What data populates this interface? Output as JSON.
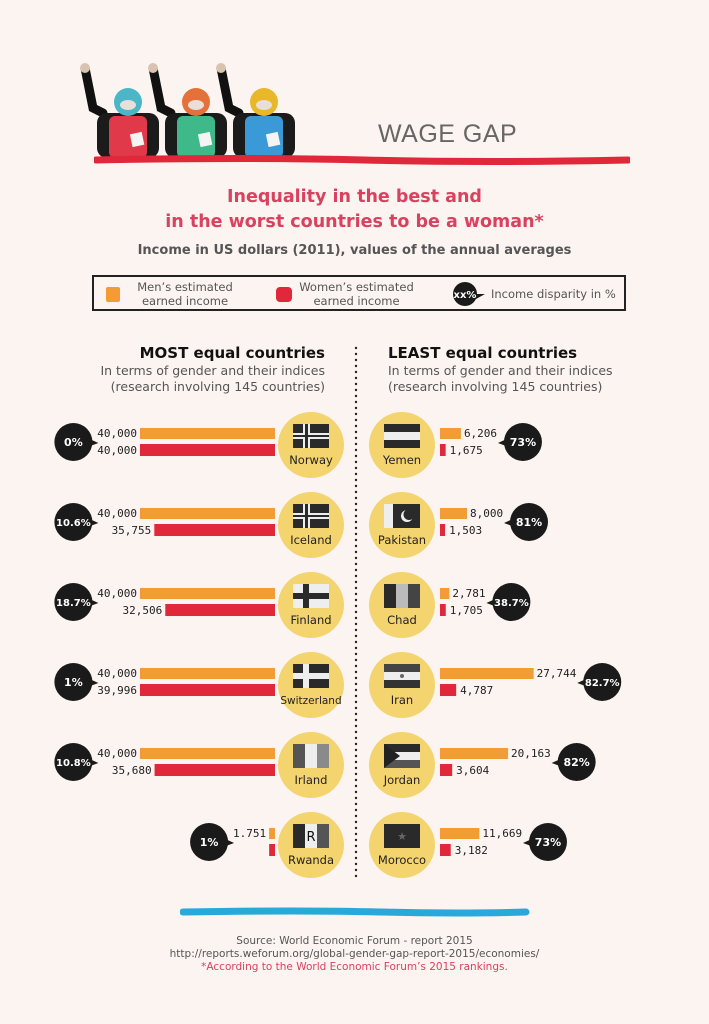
{
  "header": {
    "title": "WAGE GAP",
    "illustration": "three-protesters-raised-fists"
  },
  "headline": {
    "line1": "Inequality in the best and",
    "line2": "in the worst countries to be a woman*"
  },
  "subtitle": "Income in US dollars (2011),  values of the annual averages",
  "legend": {
    "men": "Men’s estimated earned income",
    "men_l1": "Men’s estimated",
    "men_l2": "earned income",
    "women_l1": "Women’s estimated",
    "women_l2": "earned income",
    "bubble_sample": "xx%",
    "disparity": "Income disparity in %"
  },
  "colors": {
    "men": "#f39b35",
    "women": "#e0283a",
    "circle": "#f3d46e",
    "bubble": "#1a1a1a",
    "headline": "#d9415f",
    "top_line": "#e0283a",
    "bottom_line": "#27a9d9",
    "background": "#fcf4f1"
  },
  "sections": {
    "most": {
      "title": "MOST equal countries",
      "l1": "In terms of gender and their indices",
      "l2": "(research involving 145 countries)"
    },
    "least": {
      "title": "LEAST equal countries",
      "l1": "In terms of gender and their indices",
      "l2": "(research involving 145 countries)"
    }
  },
  "chart_data": {
    "type": "bar",
    "units": "US dollars (2011)",
    "series_names": [
      "Men’s estimated earned income",
      "Women’s estimated earned income"
    ],
    "most_equal": [
      {
        "country": "Norway",
        "flag_icon": "norway-flag-icon",
        "men": 40000,
        "women": 40000,
        "men_label": "40,000",
        "women_label": "40,000",
        "disparity": "0%"
      },
      {
        "country": "Iceland",
        "flag_icon": "iceland-flag-icon",
        "men": 40000,
        "women": 35755,
        "men_label": "40,000",
        "women_label": "35,755",
        "disparity": "10.6%"
      },
      {
        "country": "Finland",
        "flag_icon": "finland-flag-icon",
        "men": 40000,
        "women": 32506,
        "men_label": "40,000",
        "women_label": "32,506",
        "disparity": "18.7%"
      },
      {
        "country": "Switzerland",
        "flag_icon": "sweden-flag-icon",
        "men": 40000,
        "women": 39996,
        "men_label": "40,000",
        "women_label": "39,996",
        "disparity": "1%"
      },
      {
        "country": "Irland",
        "flag_icon": "ireland-flag-icon",
        "men": 40000,
        "women": 35680,
        "men_label": "40,000",
        "women_label": "35,680",
        "disparity": "10.8%"
      },
      {
        "country": "Rwanda",
        "flag_icon": "rwanda-flag-icon",
        "men": 1751,
        "women": 1734,
        "men_label": "1.751",
        "women_label": "",
        "disparity": "1%"
      }
    ],
    "least_equal": [
      {
        "country": "Yemen",
        "flag_icon": "yemen-flag-icon",
        "men": 6206,
        "women": 1675,
        "men_label": "6,206",
        "women_label": "1,675",
        "disparity": "73%"
      },
      {
        "country": "Pakistan",
        "flag_icon": "pakistan-flag-icon",
        "men": 8000,
        "women": 1503,
        "men_label": "8,000",
        "women_label": "1,503",
        "disparity": "81%"
      },
      {
        "country": "Chad",
        "flag_icon": "chad-flag-icon",
        "men": 2781,
        "women": 1705,
        "men_label": "2,781",
        "women_label": "1,705",
        "disparity": "38.7%"
      },
      {
        "country": "Iran",
        "flag_icon": "iran-flag-icon",
        "men": 27744,
        "women": 4787,
        "men_label": "27,744",
        "women_label": "4,787",
        "disparity": "82.7%"
      },
      {
        "country": "Jordan",
        "flag_icon": "jordan-flag-icon",
        "men": 20163,
        "women": 3604,
        "men_label": "20,163",
        "women_label": "3,604",
        "disparity": "82%"
      },
      {
        "country": "Morocco",
        "flag_icon": "morocco-flag-icon",
        "men": 11669,
        "women": 3182,
        "men_label": "11,669",
        "women_label": "3,182",
        "disparity": "73%"
      }
    ]
  },
  "footer": {
    "source": "Source: World Economic Forum - report 2015",
    "url": "http://reports.weforum.org/global-gender-gap-report-2015/economies/",
    "note": "*According to the World Economic Forum’s 2015 rankings."
  }
}
